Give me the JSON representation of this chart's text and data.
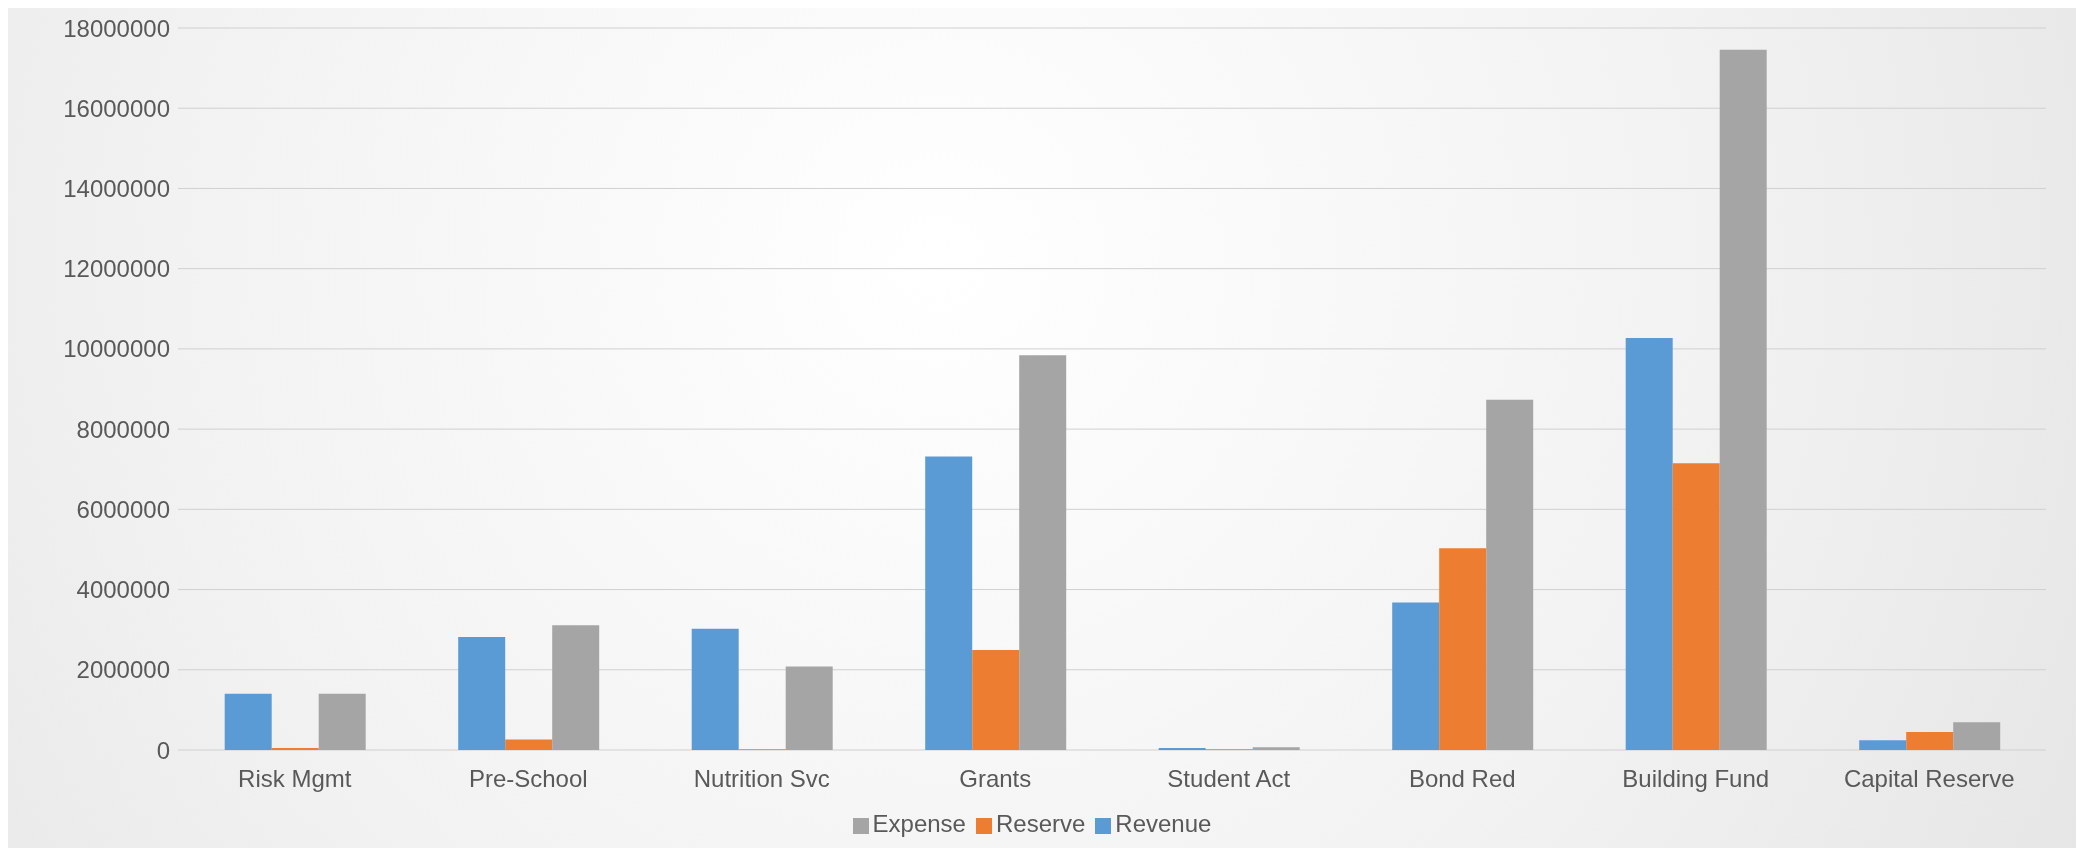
{
  "chart_data": {
    "type": "bar",
    "categories": [
      "Risk Mgmt",
      "Pre-School",
      "Nutrition Svc",
      "Grants",
      "Student Act",
      "Bond Red",
      "Building Fund",
      "Capital Reserve"
    ],
    "series": [
      {
        "name": "Revenue",
        "color": "#5b9bd5",
        "values": [
          1400000,
          2820000,
          3020000,
          7320000,
          50000,
          3680000,
          10270000,
          240000
        ]
      },
      {
        "name": "Reserve",
        "color": "#ed7d31",
        "values": [
          50000,
          260000,
          20000,
          2490000,
          20000,
          5030000,
          7150000,
          450000
        ]
      },
      {
        "name": "Expense",
        "color": "#a5a5a5",
        "values": [
          1400000,
          3110000,
          2080000,
          9840000,
          70000,
          8730000,
          17460000,
          690000
        ]
      }
    ],
    "ylim": [
      0,
      18000000
    ],
    "yticks": [
      0,
      2000000,
      4000000,
      6000000,
      8000000,
      10000000,
      12000000,
      14000000,
      16000000,
      18000000
    ],
    "grid": "y",
    "legend": "bottom"
  }
}
